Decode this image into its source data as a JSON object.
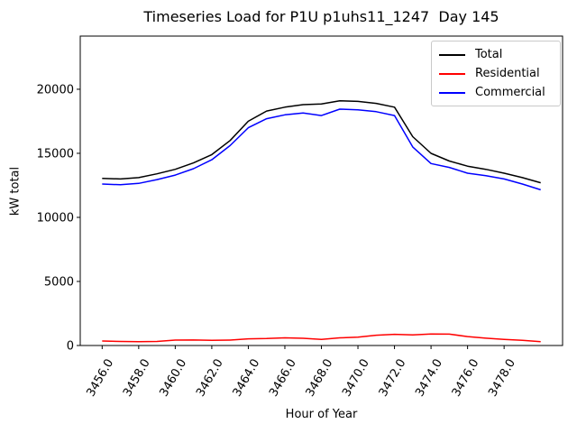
{
  "chart_data": {
    "type": "line",
    "title": "Timeseries Load for P1U p1uhs11_1247  Day 145",
    "xlabel": "Hour of Year",
    "ylabel": "kW total",
    "x": [
      3456,
      3457,
      3458,
      3459,
      3460,
      3461,
      3462,
      3463,
      3464,
      3465,
      3466,
      3467,
      3468,
      3469,
      3470,
      3471,
      3472,
      3473,
      3474,
      3475,
      3476,
      3477,
      3478,
      3479,
      3480
    ],
    "series": [
      {
        "name": "Total",
        "color": "#000000",
        "values": [
          13050,
          13000,
          13100,
          13400,
          13750,
          14250,
          14900,
          16000,
          17500,
          18300,
          18600,
          18800,
          18850,
          19100,
          19050,
          18900,
          18600,
          16300,
          15000,
          14400,
          14000,
          13750,
          13450,
          13100,
          12700
        ]
      },
      {
        "name": "Residential",
        "color": "#ff0000",
        "values": [
          350,
          320,
          300,
          320,
          420,
          430,
          400,
          420,
          520,
          540,
          600,
          560,
          480,
          600,
          650,
          800,
          870,
          830,
          900,
          890,
          700,
          570,
          470,
          400,
          300
        ]
      },
      {
        "name": "Commercial",
        "color": "#0000ff",
        "values": [
          12600,
          12550,
          12650,
          12950,
          13300,
          13800,
          14500,
          15600,
          17000,
          17700,
          18000,
          18150,
          17950,
          18450,
          18400,
          18250,
          17950,
          15500,
          14200,
          13900,
          13450,
          13250,
          13000,
          12600,
          12150
        ]
      }
    ],
    "xlim": [
      3454.8,
      3481.2
    ],
    "ylim": [
      0,
      24150
    ],
    "xticks": [
      3456,
      3458,
      3460,
      3462,
      3464,
      3466,
      3468,
      3470,
      3472,
      3474,
      3476,
      3478
    ],
    "xtick_labels": [
      "3456.0",
      "3458.0",
      "3460.0",
      "3462.0",
      "3464.0",
      "3466.0",
      "3468.0",
      "3470.0",
      "3472.0",
      "3474.0",
      "3476.0",
      "3478.0"
    ],
    "yticks": [
      0,
      5000,
      10000,
      15000,
      20000
    ],
    "ytick_labels": [
      "0",
      "5000",
      "10000",
      "15000",
      "20000"
    ],
    "xtick_rotation_deg": 60,
    "grid": false,
    "legend": {
      "position": "upper right",
      "entries": [
        "Total",
        "Residential",
        "Commercial"
      ]
    }
  }
}
